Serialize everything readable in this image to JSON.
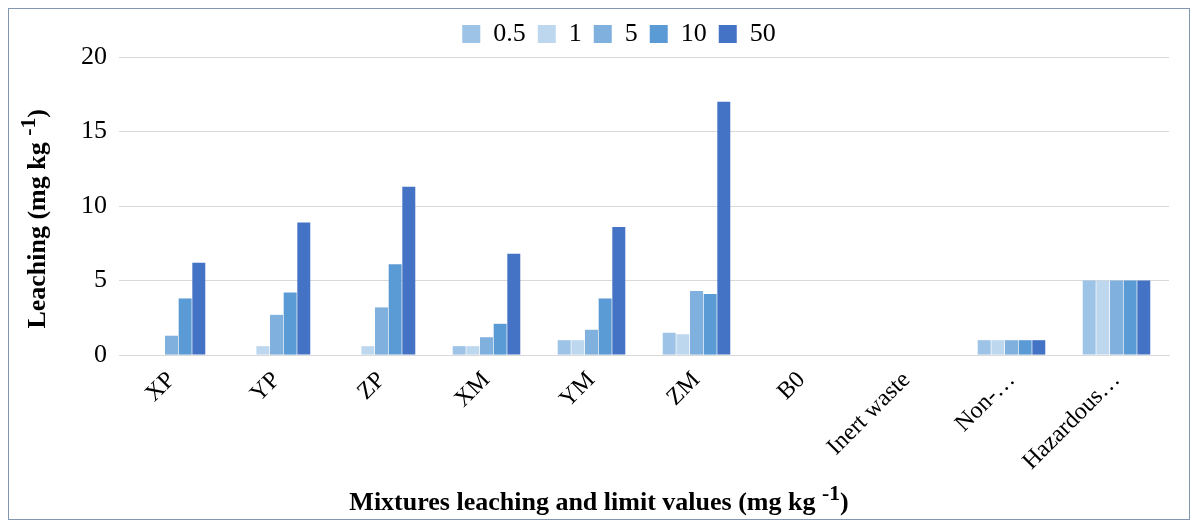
{
  "chart_data": {
    "type": "bar",
    "xlabel": "Mixtures leaching and limit values  (mg kg $^{-1}$)",
    "ylabel": "Leaching  (mg kg $^{-1}$)",
    "categories": [
      "XP",
      "YP",
      "ZP",
      "XM",
      "YM",
      "ZM",
      "B0",
      "Inert waste",
      "Non-…",
      "Hazardous…"
    ],
    "series": [
      {
        "name": "0.5",
        "color": "#9dc3e6",
        "values": [
          0,
          0,
          0,
          0.6,
          1.0,
          1.5,
          0,
          0,
          1,
          5
        ]
      },
      {
        "name": "1",
        "color": "#bdd7ee",
        "values": [
          0,
          0.6,
          0.6,
          0.6,
          1.0,
          1.4,
          0,
          0,
          1,
          5
        ]
      },
      {
        "name": "5",
        "color": "#7fb0de",
        "values": [
          1.3,
          2.7,
          3.2,
          1.2,
          1.7,
          4.3,
          0,
          0,
          1,
          5
        ]
      },
      {
        "name": "10",
        "color": "#5b9bd5",
        "values": [
          3.8,
          4.2,
          6.1,
          2.1,
          3.8,
          4.1,
          0,
          0,
          1,
          5
        ]
      },
      {
        "name": "50",
        "color": "#4472c4",
        "values": [
          6.2,
          8.9,
          11.3,
          6.8,
          8.6,
          17.0,
          0,
          0,
          1,
          5
        ]
      }
    ],
    "ylim": [
      0,
      20
    ],
    "yticks": [
      0,
      5,
      10,
      15,
      20
    ],
    "grid": "y",
    "legend": "top"
  }
}
